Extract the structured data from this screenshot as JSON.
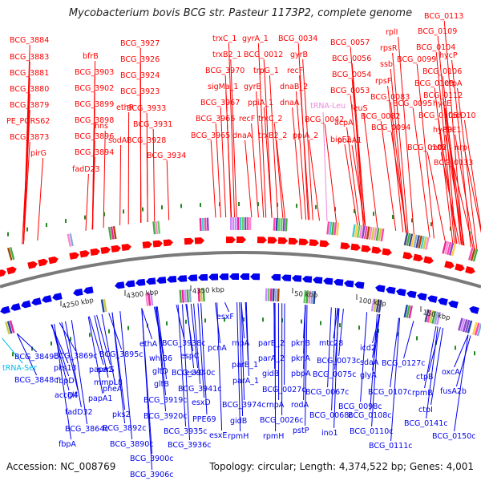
{
  "title": "Mycobacterium bovis BCG str. Pasteur 1173P2, complete genome",
  "footer": {
    "accession": "Accession: NC_008769",
    "summary": "Topology: circular; Length: 4,374,522 bp; Genes: 4,001"
  },
  "colors": {
    "forward": "#ff0000",
    "reverse": "#0000ee",
    "trna": "#00bbee",
    "trna_leu": "#ee88dd",
    "backbone": "#7a7a7a",
    "ticks": "#228822"
  },
  "scale_labels": [
    "4250 kbp",
    "4300 kbp",
    "4350 kbp",
    "50 kbp",
    "100 kbp",
    "150 kbp"
  ],
  "forward_labels": [
    "BCG_3884",
    "BCG_3883",
    "BCG_3881",
    "BCG_3880",
    "BCG_3879",
    "PE_PGRS62",
    "BCG_3873",
    "pirG",
    "bfrB",
    "BCG_3903",
    "BCG_3902",
    "BCG_3899",
    "BCG_3898",
    "BCG_3896",
    "BCG_3894",
    "fadD23",
    "BCG_3927",
    "BCG_3926",
    "BCG_3924",
    "BCG_3923",
    "ethR",
    "hns",
    "BCG_3933",
    "BCG_3931",
    "sodA",
    "BCG_3928",
    "BCG_3934",
    "trxC_1",
    "trxB2_1",
    "BCG_3970",
    "sigMa_1",
    "BCG_3967",
    "BCG_3966",
    "BCG_3965",
    "gyrA_1",
    "BCG_0012",
    "trpG_1",
    "gyrB",
    "ppiA_1",
    "recF",
    "dnaA",
    "BCG_0034",
    "gyrB",
    "recF",
    "dnaB_2",
    "dnaA",
    "trxC_2",
    "trxB2_2",
    "ppiA_2",
    "BCG_0057",
    "BCG_0056",
    "BCG_0054",
    "BCG_0053",
    "BCG_0042",
    "acpA",
    "bioF2",
    "rplI",
    "rpsR",
    "ssb",
    "rpsF",
    "BCG_0083",
    "BCG_0082",
    "leuS",
    "ponA1",
    "BCG_0113",
    "BCG_0109",
    "BCG_0104",
    "BCG_0099",
    "hycP",
    "BCG_0106",
    "BCG_0103",
    "ctpA",
    "BCG_0112",
    "BCG_0095",
    "hycE",
    "BCG_0105",
    "fadD10",
    "BCG_0094",
    "hycD",
    "PPE1",
    "BCG_0102",
    "mtn",
    "nrp",
    "BCG_0133"
  ],
  "trna_forward_label": "tRNA-Leu",
  "reverse_labels": [
    "BCG_3849c",
    "tRNA-Ser",
    "BCG_3848c",
    "BCG_3869c",
    "pks13",
    "fbpD",
    "accD4",
    "glf",
    "fadD32",
    "BCG_3864c",
    "fbpA",
    "BCG_3895c",
    "papA2",
    "serS",
    "mmpL8",
    "pheA",
    "papA1",
    "pks2",
    "BCG_3892c",
    "BCG_3890c",
    "BCG_3900c",
    "BCG_3906c",
    "ethA",
    "whiB6",
    "gltD",
    "gltB",
    "BCG_3919c",
    "BCG_3920c",
    "BCG_3938c",
    "espC",
    "BCG_3940c",
    "esxC",
    "BCG_3941c",
    "esxD",
    "PPE69",
    "BCG_3935c",
    "BCG_3936c",
    "esxF",
    "pcnA",
    "esxE",
    "rnpA",
    "parB_1",
    "parA_1",
    "BCG_3974c",
    "gidB",
    "rpmH",
    "parB_2",
    "parA_2",
    "gidB",
    "BCG_0027c",
    "rnpA",
    "BCG_0026c",
    "rpmH",
    "pknB",
    "pknA",
    "pbpA",
    "rodA",
    "pstP",
    "mtc28",
    "BCG_0073c",
    "BCG_0075c",
    "BCG_0067c",
    "BCG_0068c",
    "ino1",
    "icd2",
    "sdaA",
    "glyA",
    "BCG_0098c",
    "BCG_0108c",
    "BCG_0110c",
    "BCG_0111c",
    "BCG_0107c",
    "BCG_0127c",
    "ctpB",
    "rpmB",
    "ctpI",
    "BCG_0141c",
    "oxcA",
    "fusA2b",
    "BCG_0150c"
  ]
}
